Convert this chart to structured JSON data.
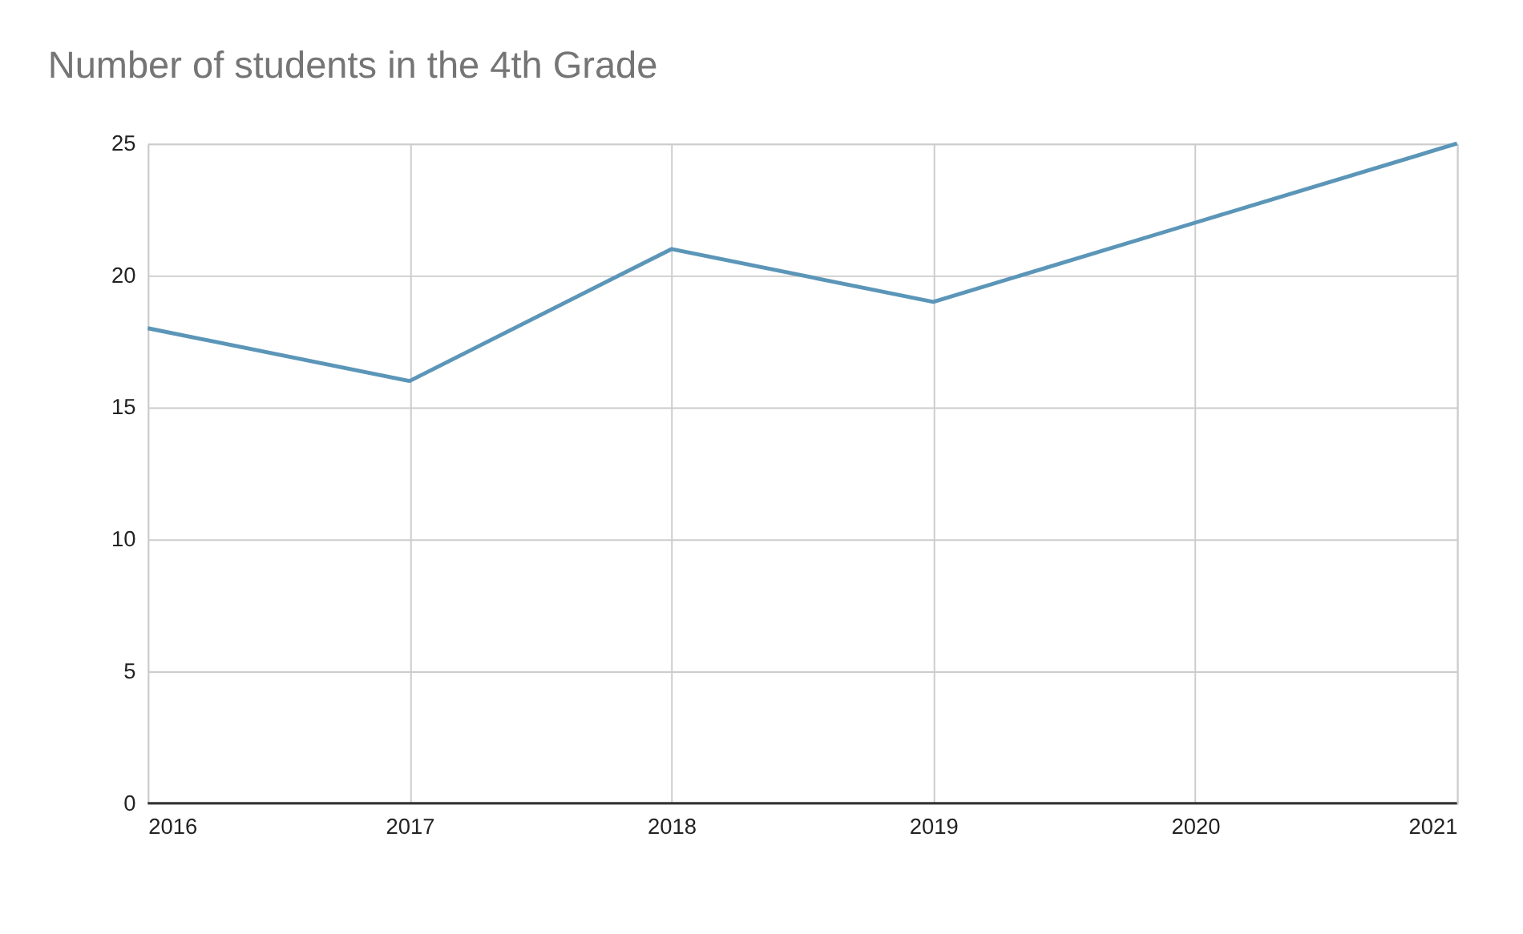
{
  "chart_data": {
    "type": "line",
    "title": "Number of students in the 4th Grade",
    "x": [
      2016,
      2017,
      2018,
      2019,
      2020,
      2021
    ],
    "series": [
      {
        "color": "#5b96b8",
        "values": [
          18,
          16,
          21,
          19,
          22,
          25
        ]
      }
    ],
    "xlim": [
      2016,
      2021
    ],
    "xticks": [
      2016,
      2017,
      2018,
      2019,
      2020,
      2021
    ],
    "ylim": [
      0,
      25
    ],
    "yticks": [
      0,
      5,
      10,
      15,
      20,
      25
    ],
    "grid": true,
    "marker": "none",
    "line_style": "solid",
    "legend": false
  }
}
